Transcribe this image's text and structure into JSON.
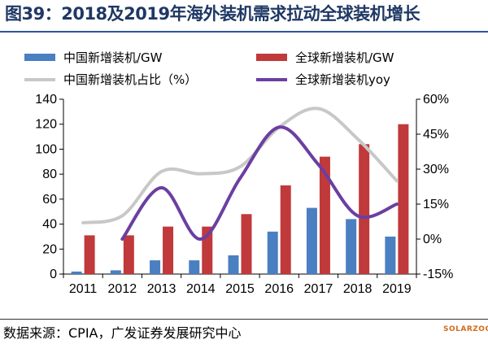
{
  "header": {
    "title": "图39：2018及2019年海外装机需求拉动全球装机增长"
  },
  "footer": {
    "source": "数据来源：CPIA，广发证券发展研究中心",
    "watermark": "SOLARZOOM"
  },
  "chart_data": {
    "type": "bar",
    "categories": [
      "2011",
      "2012",
      "2013",
      "2014",
      "2015",
      "2016",
      "2017",
      "2018",
      "2019"
    ],
    "series": [
      {
        "name": "中国新增装机/GW",
        "type": "bar",
        "axis": "left",
        "color": "#4a7fc1",
        "values": [
          2,
          3,
          11,
          11,
          15,
          34,
          53,
          44,
          30
        ]
      },
      {
        "name": "全球新增装机/GW",
        "type": "bar",
        "axis": "left",
        "color": "#c0393b",
        "values": [
          31,
          31,
          38,
          38,
          48,
          71,
          94,
          104,
          120
        ]
      },
      {
        "name": "中国新增装机占比（%）",
        "type": "line",
        "axis": "right",
        "color": "#c8c8c8",
        "values": [
          0.07,
          0.1,
          0.29,
          0.28,
          0.31,
          0.48,
          0.56,
          0.43,
          0.25
        ]
      },
      {
        "name": "全球新增装机yoy",
        "type": "line",
        "axis": "right",
        "color": "#6b3fa0",
        "values": [
          null,
          0.0,
          0.22,
          0.0,
          0.26,
          0.48,
          0.32,
          0.1,
          0.15
        ]
      }
    ],
    "yleft": {
      "ylim": [
        0,
        140
      ],
      "ticks": [
        "0",
        "20",
        "40",
        "60",
        "80",
        "100",
        "120",
        "140"
      ]
    },
    "yright": {
      "ylim": [
        -0.15,
        0.6
      ],
      "ticks": [
        "-15%",
        "0%",
        "15%",
        "30%",
        "45%",
        "60%"
      ]
    },
    "legend": {
      "placement": "top",
      "columns": 2
    },
    "grid": false
  }
}
